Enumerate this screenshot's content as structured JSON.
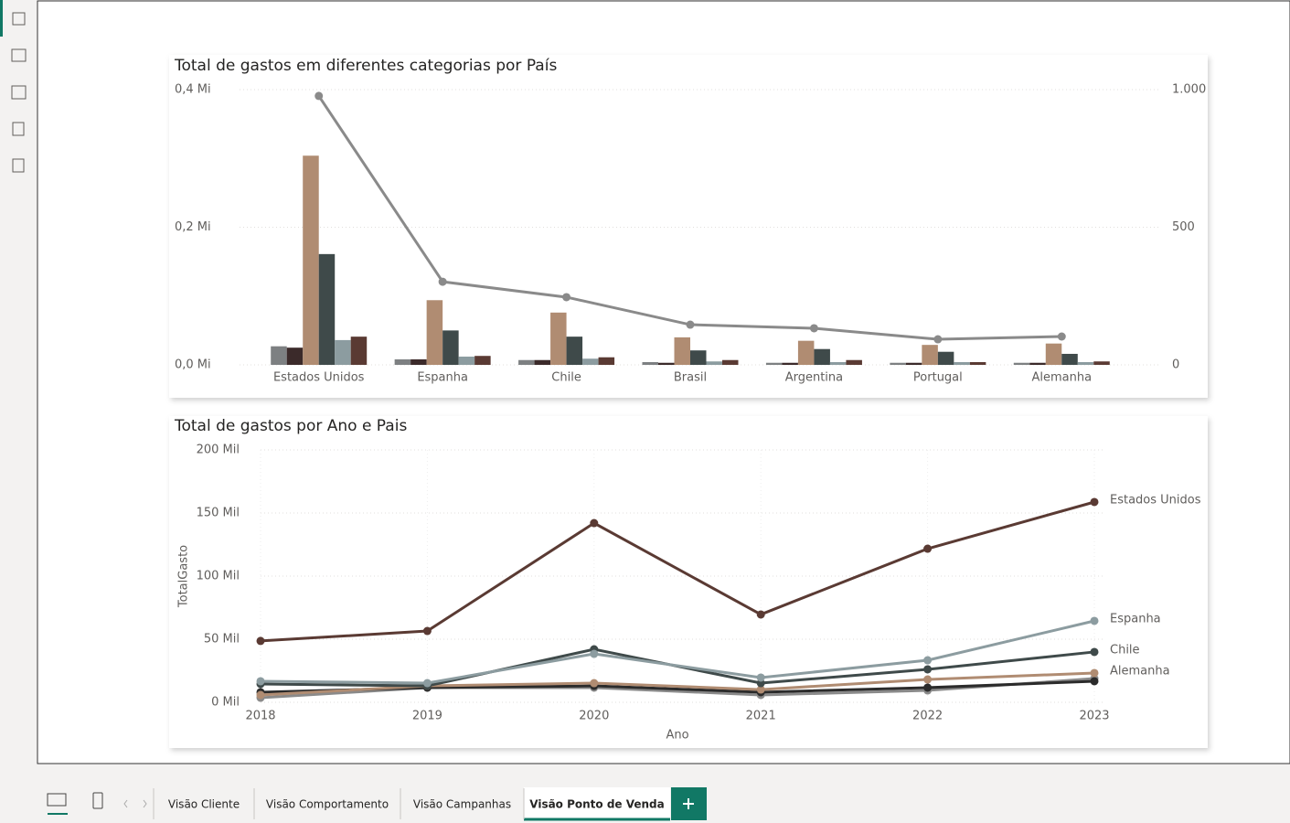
{
  "tabs": [
    "Visão Cliente",
    "Visão Comportamento",
    "Visão Campanhas",
    "Visão Ponto de Venda"
  ],
  "chart_data": [
    {
      "type": "bar",
      "title": "Total de gastos em diferentes categorias por País",
      "categories": [
        "Estados Unidos",
        "Espanha",
        "Chile",
        "Brasil",
        "Argentina",
        "Portugal",
        "Alemanha"
      ],
      "series": [
        {
          "color": "#7d8082",
          "values": [
            0.027,
            0.008,
            0.007,
            0.004,
            0.003,
            0.003,
            0.003
          ]
        },
        {
          "color": "#3b2a2a",
          "values": [
            0.025,
            0.008,
            0.007,
            0.003,
            0.003,
            0.003,
            0.003
          ]
        },
        {
          "color": "#b08c72",
          "values": [
            0.304,
            0.094,
            0.076,
            0.04,
            0.035,
            0.029,
            0.031
          ]
        },
        {
          "color": "#3f4a4a",
          "values": [
            0.161,
            0.05,
            0.041,
            0.021,
            0.023,
            0.019,
            0.016
          ]
        },
        {
          "color": "#8c9ca0",
          "values": [
            0.036,
            0.012,
            0.009,
            0.005,
            0.004,
            0.004,
            0.004
          ]
        },
        {
          "color": "#5a3a33",
          "values": [
            0.041,
            0.013,
            0.011,
            0.007,
            0.007,
            0.004,
            0.005
          ]
        },
        {
          "type": "line",
          "axis": "y2",
          "color": "#8a8a8a",
          "values": [
            977,
            302,
            246,
            146,
            133,
            93,
            103
          ]
        }
      ],
      "ylim": [
        0,
        0.4
      ],
      "yticks": [
        {
          "value": 0,
          "label": "0,0 Mi"
        },
        {
          "value": 0.2,
          "label": "0,2 Mi"
        },
        {
          "value": 0.4,
          "label": "0,4 Mi"
        }
      ],
      "y2lim": [
        0,
        1000
      ],
      "y2ticks": [
        0,
        500,
        {
          "value": 1000,
          "label": "1.000"
        }
      ],
      "grid": true
    },
    {
      "type": "line",
      "title": "Total de gastos por Ano e Pais",
      "xlabel": "Ano",
      "ylabel": "TotalGasto",
      "x": [
        2018,
        2019,
        2020,
        2021,
        2022,
        2023
      ],
      "series": [
        {
          "name": "Estados Unidos",
          "color": "#5a3a33",
          "values": [
            48.6,
            56.5,
            142,
            69.6,
            121.7,
            158.7
          ]
        },
        {
          "name": "Espanha",
          "color": "#8c9ca0",
          "values": [
            16.7,
            15.2,
            38.4,
            19.6,
            33.3,
            64.5
          ]
        },
        {
          "name": "Chile",
          "color": "#3f4a4a",
          "values": [
            14.5,
            13,
            42,
            15.2,
            26.1,
            39.9
          ]
        },
        {
          "name": "Alemanha",
          "color": "#b08c72",
          "values": [
            5.8,
            13,
            15.2,
            10.1,
            18.1,
            23.2
          ]
        },
        {
          "color": "#2b2b2b",
          "values": [
            8,
            11.6,
            13,
            8,
            11.6,
            16.7
          ]
        },
        {
          "color": "#8a8a8a",
          "values": [
            3.6,
            11.6,
            11.6,
            5.8,
            9.4,
            18.8
          ]
        }
      ],
      "xlim": [
        2018,
        2023
      ],
      "xticks": [
        2018,
        2019,
        2020,
        2021,
        2022,
        2023
      ],
      "ylim": [
        0,
        200
      ],
      "yticks": [
        {
          "value": 0,
          "label": "0 Mil"
        },
        {
          "value": 50,
          "label": "50 Mil"
        },
        {
          "value": 100,
          "label": "100 Mil"
        },
        {
          "value": 150,
          "label": "150 Mil"
        },
        {
          "value": 200,
          "label": "200 Mil"
        }
      ],
      "grid": true
    }
  ]
}
